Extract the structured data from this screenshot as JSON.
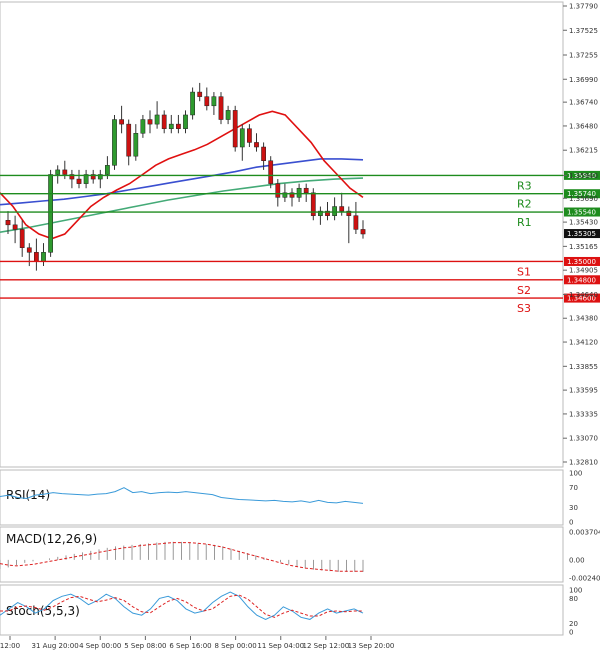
{
  "chart_data": {
    "type": "candlestick",
    "price_axis_ticks": [
      "1.37790",
      "1.37525",
      "1.37255",
      "1.36990",
      "1.36740",
      "1.36480",
      "1.36215",
      "1.35940",
      "1.35690",
      "1.35430",
      "1.35165",
      "1.34905",
      "1.34640",
      "1.34380",
      "1.34120",
      "1.33855",
      "1.33595",
      "1.33335",
      "1.33070",
      "1.32810"
    ],
    "ylim": [
      1.3281,
      1.3779
    ],
    "time_labels": [
      "12:00",
      "31 Aug 20:00",
      "4 Sep 00:00",
      "5 Sep 08:00",
      "6 Sep 16:00",
      "8 Sep 00:00",
      "11 Sep 04:00",
      "12 Sep 12:00",
      "13 Sep 20:00"
    ],
    "current_price": "1.35305",
    "candles": [
      [
        1.3545,
        1.3555,
        1.353,
        1.354
      ],
      [
        1.354,
        1.355,
        1.352,
        1.3535
      ],
      [
        1.3535,
        1.3545,
        1.3505,
        1.3515
      ],
      [
        1.3515,
        1.352,
        1.3495,
        1.351
      ],
      [
        1.351,
        1.3525,
        1.349,
        1.35
      ],
      [
        1.35,
        1.352,
        1.3495,
        1.351
      ],
      [
        1.351,
        1.36,
        1.3505,
        1.3595
      ],
      [
        1.3595,
        1.3605,
        1.3585,
        1.36
      ],
      [
        1.36,
        1.361,
        1.359,
        1.3595
      ],
      [
        1.3595,
        1.36,
        1.358,
        1.359
      ],
      [
        1.359,
        1.36,
        1.358,
        1.3585
      ],
      [
        1.3585,
        1.36,
        1.358,
        1.3595
      ],
      [
        1.3595,
        1.36,
        1.3585,
        1.359
      ],
      [
        1.359,
        1.36,
        1.358,
        1.3595
      ],
      [
        1.3595,
        1.3615,
        1.359,
        1.3605
      ],
      [
        1.3605,
        1.366,
        1.36,
        1.3655
      ],
      [
        1.3655,
        1.367,
        1.364,
        1.365
      ],
      [
        1.365,
        1.3655,
        1.3605,
        1.3615
      ],
      [
        1.3615,
        1.365,
        1.361,
        1.364
      ],
      [
        1.364,
        1.366,
        1.3635,
        1.3655
      ],
      [
        1.3655,
        1.3665,
        1.364,
        1.365
      ],
      [
        1.365,
        1.3675,
        1.3645,
        1.366
      ],
      [
        1.366,
        1.3665,
        1.364,
        1.3645
      ],
      [
        1.3645,
        1.366,
        1.364,
        1.365
      ],
      [
        1.365,
        1.366,
        1.364,
        1.3645
      ],
      [
        1.3645,
        1.3665,
        1.364,
        1.366
      ],
      [
        1.366,
        1.369,
        1.3655,
        1.3685
      ],
      [
        1.3685,
        1.3695,
        1.3675,
        1.368
      ],
      [
        1.368,
        1.369,
        1.3665,
        1.367
      ],
      [
        1.367,
        1.3685,
        1.366,
        1.368
      ],
      [
        1.368,
        1.3685,
        1.365,
        1.3655
      ],
      [
        1.3655,
        1.367,
        1.365,
        1.3665
      ],
      [
        1.3665,
        1.367,
        1.362,
        1.3625
      ],
      [
        1.3625,
        1.365,
        1.361,
        1.3645
      ],
      [
        1.3645,
        1.365,
        1.3625,
        1.363
      ],
      [
        1.363,
        1.364,
        1.362,
        1.3625
      ],
      [
        1.3625,
        1.363,
        1.36,
        1.361
      ],
      [
        1.361,
        1.3615,
        1.358,
        1.3585
      ],
      [
        1.3585,
        1.359,
        1.356,
        1.357
      ],
      [
        1.357,
        1.3585,
        1.3565,
        1.3575
      ],
      [
        1.3575,
        1.358,
        1.356,
        1.357
      ],
      [
        1.357,
        1.3585,
        1.3565,
        1.358
      ],
      [
        1.358,
        1.3585,
        1.3565,
        1.3575
      ],
      [
        1.3575,
        1.358,
        1.3545,
        1.355
      ],
      [
        1.355,
        1.356,
        1.354,
        1.3555
      ],
      [
        1.3555,
        1.3565,
        1.3545,
        1.355
      ],
      [
        1.355,
        1.357,
        1.3545,
        1.356
      ],
      [
        1.356,
        1.3575,
        1.355,
        1.3555
      ],
      [
        1.3555,
        1.356,
        1.352,
        1.355
      ],
      [
        1.355,
        1.3565,
        1.353,
        1.3535
      ],
      [
        1.3535,
        1.3545,
        1.3525,
        1.353
      ]
    ],
    "sma_red": [
      1.3575,
      1.356,
      1.354,
      1.353,
      1.3525,
      1.353,
      1.3545,
      1.356,
      1.357,
      1.3578,
      1.3585,
      1.3595,
      1.3605,
      1.3612,
      1.3617,
      1.3622,
      1.3628,
      1.3636,
      1.3644,
      1.3652,
      1.366,
      1.3664,
      1.366,
      1.3645,
      1.363,
      1.361,
      1.3595,
      1.358,
      1.357
    ],
    "sma_blue": [
      1.3562,
      1.3564,
      1.3566,
      1.3568,
      1.3571,
      1.3574,
      1.3578,
      1.3582,
      1.3586,
      1.359,
      1.3594,
      1.3598,
      1.3603,
      1.3606,
      1.3609,
      1.3612,
      1.3612,
      1.3611
    ],
    "sma_green": [
      1.3532,
      1.3537,
      1.3543,
      1.3549,
      1.3555,
      1.3561,
      1.3567,
      1.3572,
      1.3577,
      1.3581,
      1.3585,
      1.3588,
      1.359,
      1.3591
    ],
    "levels": [
      {
        "label": "R3",
        "value": "1.35940",
        "color": "#1e8c1e"
      },
      {
        "label": "R2",
        "value": "1.35740",
        "color": "#1e8c1e"
      },
      {
        "label": "R1",
        "value": "1.35540",
        "color": "#1e8c1e"
      },
      {
        "label": "S1",
        "value": "1.35000",
        "color": "#dd1111"
      },
      {
        "label": "S2",
        "value": "1.34800",
        "color": "#dd1111"
      },
      {
        "label": "S3",
        "value": "1.34600",
        "color": "#dd1111"
      }
    ],
    "rsi": {
      "label": "RSI(14)",
      "ticks": [
        "100",
        "70",
        "30",
        "0"
      ],
      "values": [
        52,
        55,
        50,
        48,
        55,
        57,
        60,
        58,
        57,
        56,
        55,
        57,
        58,
        62,
        70,
        60,
        62,
        58,
        60,
        61,
        60,
        62,
        60,
        58,
        56,
        50,
        48,
        46,
        45,
        44,
        43,
        44,
        42,
        41,
        43,
        40,
        44,
        40,
        39,
        42,
        40,
        38
      ]
    },
    "macd": {
      "label": "MACD(12,26,9)",
      "ticks": [
        "0.003704",
        "0.00",
        "-0.002409"
      ],
      "histogram": [
        -0.0012,
        -0.001,
        -0.0007,
        -0.0004,
        -0.0002,
        0.0,
        0.0002,
        0.0004,
        0.0006,
        0.0008,
        0.001,
        0.0012,
        0.0014,
        0.0016,
        0.0018,
        0.0019,
        0.002,
        0.0021,
        0.0022,
        0.0023,
        0.0024,
        0.0024,
        0.0024,
        0.0023,
        0.0022,
        0.0021,
        0.002,
        0.0018,
        0.0015,
        0.0012,
        0.0009,
        0.0006,
        0.0003,
        0.0,
        -0.0003,
        -0.0006,
        -0.0009,
        -0.0011,
        -0.0013,
        -0.0014,
        -0.0015,
        -0.0016,
        -0.0016,
        -0.0016,
        -0.0016
      ],
      "signal": [
        -0.0005,
        -0.0007,
        -0.0008,
        -0.0007,
        -0.0006,
        -0.0004,
        -0.0002,
        0.0,
        0.0002,
        0.0004,
        0.0006,
        0.0008,
        0.001,
        0.0012,
        0.0014,
        0.0016,
        0.0017,
        0.0019,
        0.002,
        0.0021,
        0.0022,
        0.0023,
        0.0023,
        0.0023,
        0.0022,
        0.0021,
        0.0019,
        0.0017,
        0.0014,
        0.0011,
        0.0008,
        0.0005,
        0.0002,
        -0.0001,
        -0.0004,
        -0.0007,
        -0.0009,
        -0.0011,
        -0.0012,
        -0.0013,
        -0.0014,
        -0.0015,
        -0.0015,
        -0.0015,
        -0.0015
      ]
    },
    "stoch": {
      "label": "Stoch(5,5,3)",
      "ticks": [
        "100",
        "80",
        "20",
        "0"
      ],
      "k": [
        40,
        55,
        70,
        60,
        45,
        55,
        75,
        85,
        90,
        80,
        65,
        75,
        90,
        80,
        60,
        45,
        40,
        55,
        80,
        85,
        75,
        55,
        45,
        50,
        70,
        85,
        95,
        85,
        60,
        40,
        30,
        40,
        60,
        50,
        35,
        30,
        45,
        55,
        45,
        50,
        55,
        45
      ],
      "d": [
        50,
        50,
        60,
        62,
        58,
        52,
        60,
        72,
        82,
        85,
        78,
        72,
        76,
        82,
        75,
        60,
        48,
        46,
        60,
        73,
        80,
        72,
        58,
        50,
        55,
        70,
        85,
        88,
        78,
        60,
        42,
        35,
        45,
        52,
        45,
        38,
        38,
        48,
        50,
        48,
        50,
        50
      ]
    }
  }
}
